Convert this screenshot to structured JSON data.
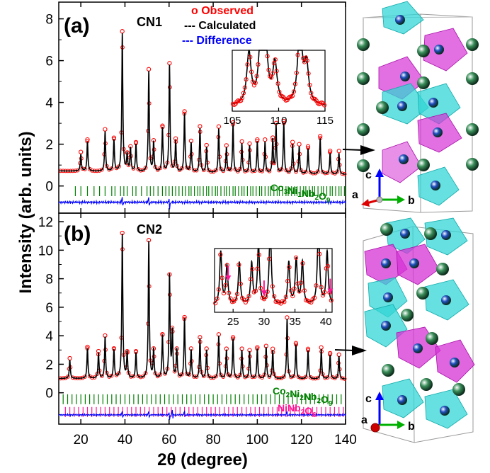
{
  "figure": {
    "ylabel": "Intensity (arb. units)",
    "xlabel": "2θ (degree)",
    "colors": {
      "observed": "#ff0000",
      "calculated": "#000000",
      "difference": "#0000ff",
      "phase_main": "#008000",
      "phase_nb": "#ff1493",
      "octa_cyan": "#33d6d6",
      "octa_magenta": "#d633d6",
      "atom_green": "#3a8f5a",
      "atom_blue": "#1f4fbf"
    }
  },
  "chart_data": [
    {
      "type": "line",
      "panel_label": "(a)",
      "sample": "CN1",
      "xlim": [
        10,
        140
      ],
      "ylim": [
        -1.3,
        8.8
      ],
      "yticks": [
        0,
        2,
        4,
        6,
        8
      ],
      "legend": {
        "observed": "o Observed",
        "calculated": "--- Calculated",
        "difference": "--- Difference",
        "placement": "top-center"
      },
      "phase_labels": [
        {
          "text": "Co3Ni1Nb2O9",
          "color": "#008000"
        }
      ],
      "peaks": [
        [
          20,
          0.8
        ],
        [
          23,
          1.4
        ],
        [
          31,
          1.9
        ],
        [
          35,
          1.5
        ],
        [
          38.8,
          6.6
        ],
        [
          41,
          0.8
        ],
        [
          42.5,
          1.1
        ],
        [
          45,
          1.3
        ],
        [
          50.8,
          4.8
        ],
        [
          53,
          1.4
        ],
        [
          57,
          2.1
        ],
        [
          60.2,
          5.1
        ],
        [
          63,
          1.5
        ],
        [
          67,
          2.8
        ],
        [
          70,
          1.4
        ],
        [
          74,
          2.1
        ],
        [
          77,
          1.2
        ],
        [
          82.5,
          2.1
        ],
        [
          86,
          1.2
        ],
        [
          89,
          2.3
        ],
        [
          93,
          1.4
        ],
        [
          96.5,
          1.3
        ],
        [
          100,
          1.5
        ],
        [
          103.5,
          1.5
        ],
        [
          107,
          1.6
        ],
        [
          108.5,
          2.3
        ],
        [
          112,
          2.4
        ],
        [
          116,
          1.4
        ],
        [
          119,
          1.3
        ],
        [
          123,
          1.2
        ],
        [
          128.5,
          1.7
        ],
        [
          133,
          1.0
        ],
        [
          137,
          1.0
        ]
      ],
      "peak_width": 0.28,
      "baseline": [
        0.72,
        0.55
      ],
      "difference_offset": -0.78,
      "tick_row": -0.25,
      "tick_rows": [
        {
          "color": "#008000",
          "positions": [
            17.5,
            20,
            23,
            26,
            28.5,
            31,
            34,
            35.5,
            38,
            39.5,
            41,
            43.5,
            45,
            47.5,
            50,
            51.5,
            53,
            55,
            57,
            58.5,
            60,
            61.5,
            63,
            64.5,
            66,
            67.5,
            69,
            70,
            71.5,
            73,
            74,
            75.5,
            77,
            78,
            79.5,
            81,
            82,
            83.5,
            85,
            86,
            87.5,
            89,
            90,
            91.5,
            93,
            94,
            95.5,
            97,
            98,
            99.5,
            101,
            102,
            103.5,
            105,
            106,
            107.5,
            109,
            110,
            111.5,
            113,
            114,
            115.5,
            117,
            118,
            119.5,
            121,
            122,
            123.5,
            125,
            126,
            127.5,
            129,
            130,
            131.5,
            133,
            134,
            135.5,
            137,
            138,
            139.5
          ]
        }
      ],
      "inset": {
        "xlim": [
          105,
          115
        ],
        "xticks": [
          105,
          110,
          115
        ],
        "ylim": [
          0.8,
          2.7
        ],
        "peaks": [
          [
            106.8,
            1.6
          ],
          [
            108.1,
            2.15
          ],
          [
            108.6,
            1.6
          ],
          [
            109.6,
            1.25
          ],
          [
            112.3,
            2.45
          ],
          [
            113.0,
            1.2
          ]
        ],
        "peak_width": 0.28,
        "baseline": 0.95,
        "arrows": []
      }
    },
    {
      "type": "line",
      "panel_label": "(b)",
      "sample": "CN2",
      "xlim": [
        10,
        140
      ],
      "ylim": [
        -2.2,
        12.6
      ],
      "yticks": [
        0,
        2,
        4,
        6,
        8,
        10,
        12
      ],
      "phase_labels": [
        {
          "text": "Co2Ni2Nb2O9",
          "color": "#008000"
        },
        {
          "text": "NiNb2O6",
          "color": "#ff1493"
        }
      ],
      "peaks": [
        [
          15,
          1.3
        ],
        [
          23,
          2.1
        ],
        [
          28,
          1.8
        ],
        [
          31,
          2.9
        ],
        [
          35,
          2.0
        ],
        [
          38.8,
          10.1
        ],
        [
          41,
          1.8
        ],
        [
          45,
          1.8
        ],
        [
          50.8,
          9.6
        ],
        [
          53,
          2.0
        ],
        [
          57,
          3.0
        ],
        [
          60.2,
          7.2
        ],
        [
          61.5,
          3.2
        ],
        [
          63.5,
          2.0
        ],
        [
          67,
          4.2
        ],
        [
          70,
          2.0
        ],
        [
          74,
          2.8
        ],
        [
          77,
          2.0
        ],
        [
          82.5,
          3.0
        ],
        [
          86,
          2.0
        ],
        [
          89,
          2.8
        ],
        [
          93,
          2.0
        ],
        [
          96.5,
          1.9
        ],
        [
          100,
          2.1
        ],
        [
          104,
          2.2
        ],
        [
          107,
          2.0
        ],
        [
          113.5,
          4.2
        ],
        [
          117.5,
          2.4
        ],
        [
          123,
          2.0
        ],
        [
          129,
          2.1
        ],
        [
          133,
          1.7
        ],
        [
          137,
          1.6
        ]
      ],
      "peak_width": 0.28,
      "baseline": [
        1.0,
        0.95
      ],
      "difference_offset": -1.55,
      "tick_row": -0.45,
      "tick_rows": [
        {
          "color": "#008000",
          "positions": [
            12,
            14,
            16,
            18,
            20,
            22,
            24,
            26,
            28,
            30,
            32,
            34,
            36,
            38,
            40,
            42,
            44,
            46,
            48,
            50,
            52,
            54,
            56,
            58,
            60,
            62,
            64,
            66,
            68,
            70,
            72,
            74,
            76,
            78,
            80,
            82,
            84,
            86,
            88,
            90,
            92,
            94,
            96,
            98,
            100,
            102,
            104,
            106,
            108,
            110,
            112,
            114,
            116,
            118,
            120,
            122,
            124,
            126,
            128,
            130,
            132,
            134,
            136,
            138
          ]
        },
        {
          "color": "#ff1493",
          "positions": [
            13,
            15,
            17,
            19,
            21,
            23,
            25,
            27,
            29,
            31,
            33,
            35,
            37,
            39,
            41,
            43,
            45,
            47,
            49,
            51,
            53,
            55,
            57,
            59,
            61,
            63,
            65,
            67,
            69,
            71,
            73,
            75,
            77,
            79,
            81,
            83,
            85,
            87,
            89,
            91,
            93,
            95,
            97,
            99,
            101,
            103,
            105,
            107,
            109,
            111,
            113,
            115,
            117,
            119,
            121,
            123,
            125,
            127,
            129,
            131,
            133,
            135,
            137,
            139
          ]
        }
      ],
      "inset": {
        "xlim": [
          22,
          41
        ],
        "xticks": [
          25,
          30,
          35,
          40
        ],
        "ylim": [
          0.8,
          3.2
        ],
        "peaks": [
          [
            23.0,
            2.0
          ],
          [
            24.0,
            1.45
          ],
          [
            26.0,
            1.6
          ],
          [
            28.0,
            1.55
          ],
          [
            29.1,
            2.25
          ],
          [
            31.0,
            3.0
          ],
          [
            34.0,
            1.6
          ],
          [
            35.2,
            1.7
          ],
          [
            36.2,
            1.6
          ],
          [
            38.8,
            3.2
          ],
          [
            40.2,
            2.0
          ]
        ],
        "peak_width": 0.2,
        "baseline": 1.05,
        "arrows": [
          24.2,
          30.0,
          40.7
        ]
      }
    }
  ],
  "structure_axes": [
    {
      "labels": [
        "c",
        "a",
        "b"
      ]
    },
    {
      "labels": [
        "c",
        "a",
        "b"
      ]
    }
  ]
}
